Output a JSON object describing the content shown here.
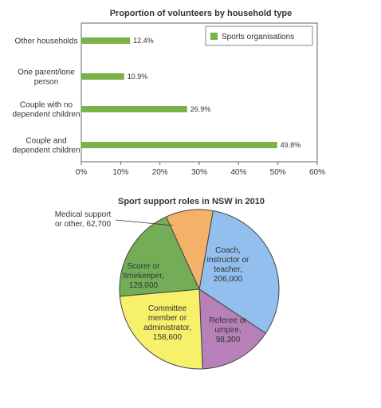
{
  "chart_data": [
    {
      "type": "bar",
      "orientation": "horizontal",
      "title": "Proportion of volunteers by household type",
      "categories": [
        [
          "Other households"
        ],
        [
          "One parent/lone",
          "person"
        ],
        [
          "Couple with no",
          "dependent children"
        ],
        [
          "Couple and",
          "dependent children"
        ]
      ],
      "series": [
        {
          "name": "Sports organisations",
          "values": [
            12.4,
            10.9,
            26.9,
            49.8
          ],
          "labels": [
            "12.4%",
            "10.9%",
            "26.9%",
            "49.8%"
          ],
          "color": "#7ab24a"
        }
      ],
      "xlim": [
        0,
        60
      ],
      "xticks": [
        "0%",
        "10%",
        "20%",
        "30%",
        "40%",
        "50%",
        "60%"
      ],
      "legend": "top-right",
      "grid": false
    },
    {
      "type": "pie",
      "title": "Sport support roles in NSW in 2010",
      "slices": [
        {
          "lines": [
            "Coach,",
            "instructor or",
            "teacher,",
            "206,000"
          ],
          "value": 206000,
          "color": "#92bfee"
        },
        {
          "lines": [
            "Referee or",
            "umpire,",
            "98,300"
          ],
          "value": 98300,
          "color": "#b780b8"
        },
        {
          "lines": [
            "Committee",
            "member or",
            "administrator,",
            "158,600"
          ],
          "value": 158600,
          "color": "#f6f06b"
        },
        {
          "lines": [
            "Scorer or",
            "timekeeper,",
            "128,000"
          ],
          "value": 128000,
          "color": "#73ad57"
        },
        {
          "lines": [
            "Medical support",
            "or other, 62,700"
          ],
          "value": 62700,
          "color": "#f4b168"
        }
      ]
    }
  ]
}
